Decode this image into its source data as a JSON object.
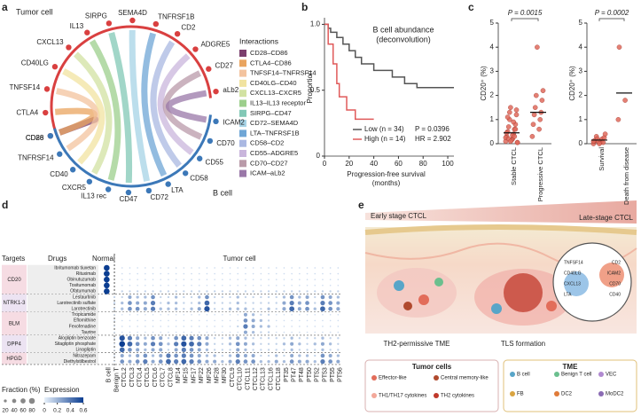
{
  "panel_labels": [
    "a",
    "b",
    "c",
    "d",
    "e"
  ],
  "panel_a": {
    "tumor_label": "Tumor cell",
    "bcell_label": "B cell",
    "legend_title": "Interactions",
    "tumor_genes": [
      "CD28",
      "CTLA4",
      "TNFSF14",
      "CD40LG",
      "CXCL13",
      "IL13",
      "SIRPG",
      "SEMA4D",
      "TNFRSF1B",
      "CD2",
      "ADGRE5",
      "CD27",
      "aLb2"
    ],
    "bcell_genes": [
      "ICAM2",
      "CD70",
      "CD55",
      "CD58",
      "LTA",
      "CD72",
      "CD47",
      "IL13 rec",
      "CXCR5",
      "CD40",
      "TNFRSF14",
      "CD86"
    ],
    "interactions": [
      {
        "name": "CD28–CD86",
        "color": "#7b3f6e"
      },
      {
        "name": "CTLA4–CD86",
        "color": "#e9a45f"
      },
      {
        "name": "TNFSF14–TNFRSF14",
        "color": "#f3c39e"
      },
      {
        "name": "CD40LG–CD40",
        "color": "#f1e3a0"
      },
      {
        "name": "CXCL13–CXCR5",
        "color": "#d2e2a2"
      },
      {
        "name": "IL13–IL13 receptor",
        "color": "#9ccf8c"
      },
      {
        "name": "SIRPG–CD47",
        "color": "#82c8b6"
      },
      {
        "name": "CD72–SEMA4D",
        "color": "#a6d3e6"
      },
      {
        "name": "LTA–TNFRSF1B",
        "color": "#6fa6d6"
      },
      {
        "name": "CD58–CD2",
        "color": "#aab8e2"
      },
      {
        "name": "CD55–ADGRE5",
        "color": "#c9b5dc"
      },
      {
        "name": "CD70–CD27",
        "color": "#b99aa9"
      },
      {
        "name": "ICAM–aLb2",
        "color": "#9a78a8"
      }
    ]
  },
  "panel_b": {
    "type": "line",
    "title": [
      "B cell abundance",
      "(deconvolution)"
    ],
    "ylabel": "Proportion",
    "xlabel": [
      "Progression-free survival",
      "(months)"
    ],
    "xlim": [
      0,
      105
    ],
    "xticks": [
      0,
      20,
      40,
      60,
      80,
      100
    ],
    "ylim": [
      0,
      1.05
    ],
    "yticks": [
      0,
      0.5,
      {
        "value": 1,
        "label": "1.0"
      }
    ],
    "series": [
      {
        "name": "Low (n = 34)",
        "color": "#555555",
        "stat": "P = 0.0396",
        "x": [
          0,
          3,
          5,
          10,
          15,
          20,
          25,
          30,
          40,
          55,
          65,
          75,
          105
        ],
        "values": [
          1,
          0.97,
          0.94,
          0.9,
          0.85,
          0.8,
          0.75,
          0.7,
          0.65,
          0.6,
          0.55,
          0.52,
          0.52
        ]
      },
      {
        "name": "High (n = 14)",
        "color": "#e05a5a",
        "stat": "HR = 2.902",
        "x": [
          0,
          3,
          7,
          10,
          12,
          18,
          25,
          40
        ],
        "values": [
          1,
          0.85,
          0.7,
          0.55,
          0.45,
          0.35,
          0.28,
          0.28
        ]
      }
    ]
  },
  "panel_c": [
    {
      "type": "scatter",
      "ylabel": "CD20⁺ (%)",
      "p": "P = 0.0015",
      "ylim": [
        0,
        5
      ],
      "yticks": [
        0,
        1,
        2,
        3,
        4,
        5
      ],
      "categories": [
        "Stable CTCL",
        "Progressive CTCL"
      ],
      "points": [
        [
          0.1,
          0.2,
          0.3,
          0.4,
          0.5,
          0.6,
          0.7,
          0.8,
          1.0,
          1.2,
          1.5,
          0.05,
          0.15,
          0.25,
          0.35,
          0.45,
          0.9,
          1.1,
          0.3,
          0.2,
          0.6,
          1.3,
          1.4,
          0.1,
          0.05
        ],
        [
          0.3,
          0.6,
          0.8,
          1.0,
          1.2,
          1.3,
          1.5,
          1.8,
          2.0,
          2.2,
          4.0
        ]
      ],
      "means": [
        0.45,
        1.3
      ]
    },
    {
      "type": "scatter",
      "ylabel": "CD20⁺ (%)",
      "p": "P = 0.0002",
      "ylim": [
        0,
        5
      ],
      "yticks": [
        0,
        1,
        2,
        3,
        4,
        5
      ],
      "categories": [
        "Survival",
        "Death from disease"
      ],
      "points": [
        [
          0.0,
          0.05,
          0.1,
          0.1,
          0.15,
          0.2,
          0.3,
          0.05,
          0.2,
          0.25,
          0.1,
          0.4,
          0.0,
          0.1
        ],
        [
          1.0,
          1.8,
          4.0
        ]
      ],
      "means": [
        0.15,
        2.1
      ]
    }
  ],
  "panel_d": {
    "targets_header": "Targets",
    "drugs_header": "Drugs",
    "normal_header": "Normal",
    "tumor_header": "Tumor cell",
    "groups": [
      {
        "target": "CD20",
        "drugs": [
          "Ibritumomab tiuxetan",
          "Rituximab",
          "Obinutuzumab",
          "Tositumomab",
          "Ofatumumab"
        ]
      },
      {
        "target": "NTRK1-3",
        "drugs": [
          "Lestaurtinib",
          "Larotrectinib sulfate",
          "Larotrectinib"
        ]
      },
      {
        "target": "BLM",
        "drugs": [
          "Tropicamide",
          "Eflornithine",
          "Fexofenadine",
          "Taurine"
        ]
      },
      {
        "target": "DPP4",
        "drugs": [
          "Alogliptin benzoate",
          "Sitagliptin phosphate",
          "Linagliptin"
        ]
      },
      {
        "target": "HPGD",
        "drugs": [
          "Nitrazepam",
          "Diethylstilbestrol"
        ]
      }
    ],
    "columns": [
      "B cell",
      "Benign T",
      "CTCL2",
      "CTCL3",
      "CTCL4",
      "CTCL5",
      "CTCL6",
      "CTCL7",
      "CTCL8",
      "MF14",
      "MF15",
      "MF17",
      "MF22",
      "MF26",
      "MF28",
      "MF30",
      "CTCL9",
      "CTCL10",
      "CTCL11",
      "CTCL12",
      "CTCL13",
      "CTCL16",
      "CTCL18",
      "PT35",
      "PT47",
      "PT48",
      "PT50",
      "PT52",
      "PT53",
      "PT55",
      "PT56"
    ],
    "fraction": [
      [
        80,
        0,
        5,
        5,
        5,
        5,
        5,
        5,
        5,
        5,
        5,
        5,
        5,
        5,
        5,
        5,
        5,
        5,
        5,
        5,
        5,
        5,
        5,
        5,
        5,
        5,
        5,
        5,
        5,
        5,
        5
      ],
      [
        80,
        0,
        5,
        5,
        5,
        5,
        5,
        5,
        5,
        5,
        5,
        5,
        5,
        5,
        5,
        5,
        5,
        5,
        5,
        5,
        5,
        5,
        5,
        5,
        5,
        5,
        5,
        5,
        5,
        5,
        5
      ],
      [
        80,
        0,
        5,
        5,
        5,
        5,
        5,
        5,
        5,
        5,
        5,
        5,
        5,
        5,
        5,
        5,
        5,
        5,
        5,
        5,
        5,
        5,
        5,
        5,
        5,
        5,
        5,
        5,
        5,
        5,
        5
      ],
      [
        80,
        0,
        5,
        5,
        5,
        5,
        5,
        5,
        5,
        5,
        5,
        5,
        5,
        5,
        5,
        5,
        5,
        5,
        5,
        5,
        5,
        5,
        5,
        5,
        5,
        5,
        5,
        5,
        5,
        5,
        5
      ],
      [
        80,
        0,
        10,
        10,
        10,
        10,
        10,
        10,
        10,
        10,
        10,
        10,
        10,
        10,
        10,
        10,
        10,
        10,
        10,
        10,
        10,
        10,
        10,
        10,
        10,
        10,
        10,
        10,
        10,
        10,
        10
      ],
      [
        0,
        10,
        10,
        30,
        20,
        20,
        40,
        10,
        10,
        20,
        10,
        10,
        20,
        40,
        10,
        10,
        10,
        20,
        10,
        10,
        10,
        10,
        10,
        20,
        40,
        20,
        30,
        10,
        40,
        30,
        20
      ],
      [
        0,
        10,
        20,
        40,
        30,
        30,
        50,
        10,
        20,
        20,
        10,
        10,
        20,
        60,
        10,
        10,
        10,
        20,
        10,
        10,
        10,
        10,
        10,
        30,
        50,
        30,
        40,
        10,
        50,
        40,
        30
      ],
      [
        0,
        10,
        20,
        40,
        40,
        30,
        50,
        20,
        20,
        20,
        10,
        20,
        30,
        70,
        10,
        10,
        20,
        20,
        20,
        10,
        10,
        20,
        10,
        30,
        60,
        30,
        40,
        20,
        60,
        40,
        30
      ],
      [
        0,
        5,
        5,
        5,
        5,
        5,
        5,
        5,
        5,
        5,
        5,
        5,
        5,
        5,
        5,
        5,
        5,
        5,
        30,
        20,
        10,
        10,
        5,
        5,
        5,
        5,
        5,
        5,
        5,
        5,
        5
      ],
      [
        0,
        5,
        5,
        5,
        5,
        5,
        5,
        5,
        5,
        5,
        5,
        5,
        5,
        5,
        5,
        5,
        5,
        5,
        40,
        30,
        20,
        10,
        5,
        5,
        5,
        5,
        5,
        5,
        5,
        5,
        5
      ],
      [
        0,
        5,
        5,
        5,
        5,
        5,
        5,
        5,
        5,
        5,
        5,
        5,
        5,
        5,
        5,
        5,
        5,
        10,
        50,
        30,
        20,
        20,
        5,
        5,
        5,
        5,
        5,
        5,
        5,
        5,
        5
      ],
      [
        0,
        5,
        5,
        5,
        5,
        5,
        5,
        5,
        5,
        5,
        5,
        5,
        5,
        5,
        5,
        5,
        5,
        5,
        30,
        20,
        10,
        10,
        5,
        5,
        5,
        5,
        5,
        5,
        5,
        5,
        5
      ],
      [
        0,
        5,
        70,
        50,
        30,
        20,
        40,
        30,
        10,
        40,
        60,
        50,
        40,
        30,
        10,
        10,
        20,
        30,
        20,
        10,
        10,
        10,
        10,
        10,
        20,
        10,
        10,
        10,
        20,
        10,
        10
      ],
      [
        0,
        5,
        80,
        60,
        40,
        30,
        50,
        40,
        20,
        50,
        70,
        60,
        50,
        30,
        10,
        10,
        20,
        40,
        30,
        20,
        10,
        10,
        10,
        20,
        30,
        20,
        10,
        20,
        30,
        20,
        10
      ],
      [
        0,
        5,
        60,
        40,
        30,
        20,
        30,
        30,
        10,
        30,
        50,
        40,
        30,
        20,
        10,
        10,
        10,
        30,
        20,
        10,
        10,
        10,
        10,
        10,
        20,
        10,
        10,
        10,
        20,
        10,
        10
      ],
      [
        0,
        5,
        30,
        20,
        30,
        40,
        20,
        30,
        50,
        40,
        50,
        40,
        30,
        20,
        20,
        10,
        20,
        40,
        30,
        30,
        10,
        10,
        20,
        10,
        30,
        20,
        20,
        10,
        40,
        30,
        20
      ],
      [
        0,
        5,
        40,
        30,
        40,
        50,
        30,
        40,
        60,
        50,
        60,
        50,
        40,
        30,
        30,
        20,
        30,
        50,
        40,
        40,
        20,
        20,
        30,
        20,
        40,
        30,
        30,
        20,
        50,
        40,
        30
      ]
    ],
    "fraction_legend": {
      "title": "Fraction (%)",
      "values": [
        20,
        40,
        60,
        80
      ]
    },
    "expression_legend": {
      "title": "Expression",
      "ticks": [
        0,
        0.2,
        0.4,
        0.6
      ]
    }
  },
  "panel_e": {
    "early": "Early stage CTCL",
    "late": "Late-stage CTCL",
    "tme_label": "TH2-permissive TME",
    "tls_label": "TLS formation",
    "tumor_box": {
      "title": "Tumor cells",
      "items": [
        "Effector-like",
        "Central memory-like",
        "TH1/TH17 cytokines",
        "TH2 cytokines"
      ]
    },
    "tme_box": {
      "title": "TME",
      "items": [
        "B cell",
        "Benign T cell",
        "VEC",
        "FB",
        "DC2",
        "MoDC2"
      ]
    },
    "inset": [
      "TNFSF14",
      "CD40LG",
      "CXCL13",
      "LTA",
      "CD2",
      "ICAM2",
      "CD70",
      "CD40"
    ]
  }
}
